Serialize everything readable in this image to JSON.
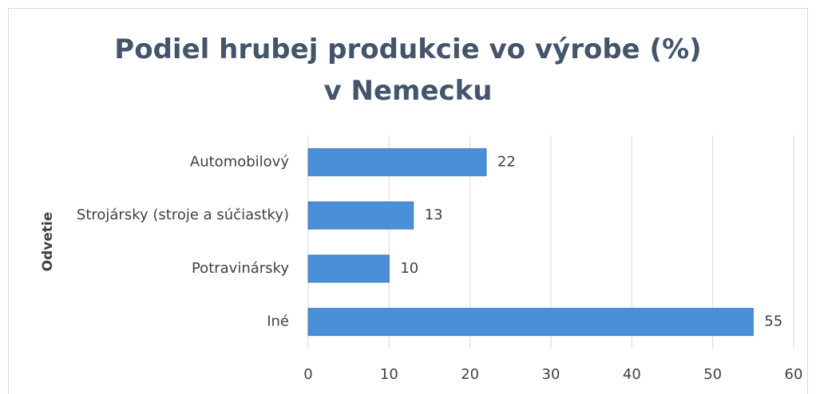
{
  "chart_data": {
    "type": "bar",
    "orientation": "horizontal",
    "title": "Podiel hrubej produkcie vo výrobe (%) v Nemecku",
    "y_label": "Odvetie",
    "categories": [
      "Automobilový",
      "Strojársky (stroje a súčiastky)",
      "Potravinársky",
      "Iné"
    ],
    "values": [
      22,
      13,
      10,
      55
    ],
    "color": "#4a90d9",
    "xlim": [
      0,
      60
    ],
    "xticks": [
      0,
      10,
      20,
      30,
      40,
      50,
      60
    ],
    "grid": true
  }
}
